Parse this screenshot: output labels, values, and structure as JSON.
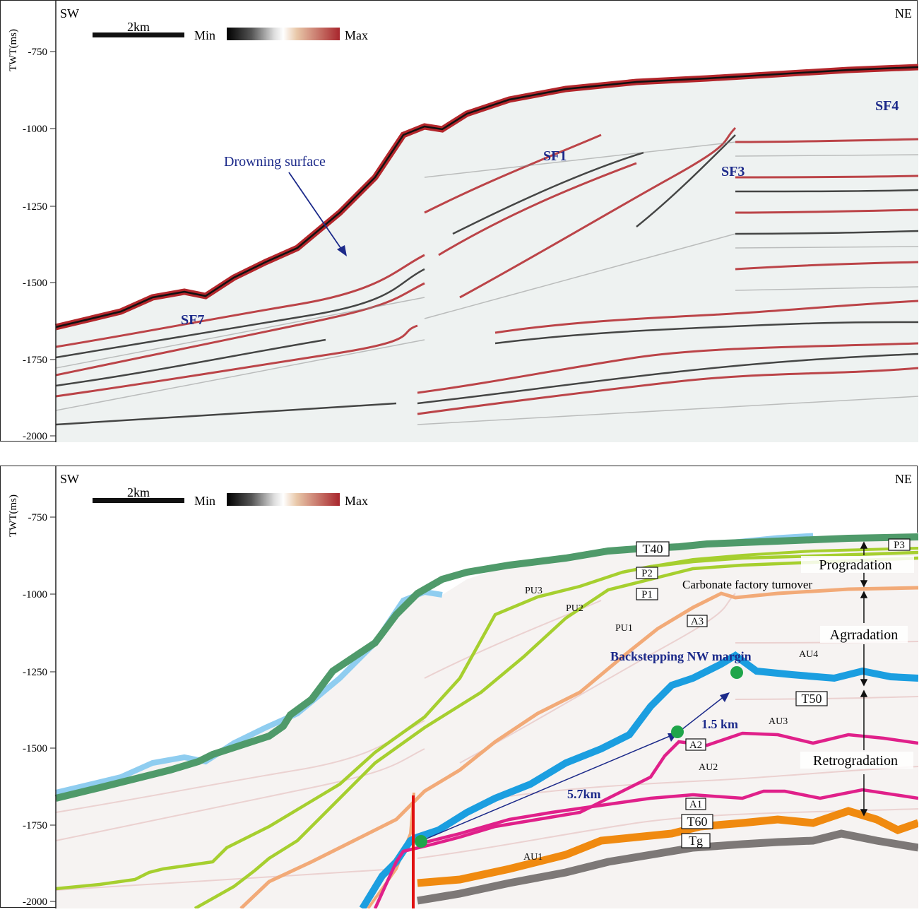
{
  "top_panel": {
    "axis_label": "TWT(ms)",
    "ticks": [
      "-750",
      "-1000",
      "-1250",
      "-1500",
      "-1750",
      "-2000"
    ],
    "direction_left": "SW",
    "direction_right": "NE",
    "scale_bar": "2km",
    "colorbar_min": "Min",
    "colorbar_max": "Max",
    "labels": {
      "sf1": "SF1",
      "sf3": "SF3",
      "sf4": "SF4",
      "sf7": "SF7",
      "drowning": "Drowning surface"
    }
  },
  "bottom_panel": {
    "axis_label": "TWT(ms)",
    "ticks": [
      "-750",
      "-1000",
      "-1250",
      "-1500",
      "-1750",
      "-2000"
    ],
    "direction_left": "SW",
    "direction_right": "NE",
    "scale_bar": "2km",
    "colorbar_min": "Min",
    "colorbar_max": "Max",
    "horizons": {
      "t40": "T40",
      "t50": "T50",
      "t60": "T60",
      "tg": "Tg",
      "p1": "P1",
      "p2": "P2",
      "p3": "P3",
      "a1": "A1",
      "a2": "A2",
      "a3": "A3"
    },
    "units": {
      "pu1": "PU1",
      "pu2": "PU2",
      "pu3": "PU3",
      "au1": "AU1",
      "au2": "AU2",
      "au3": "AU3",
      "au4": "AU4"
    },
    "annotations": {
      "carbonate": "Carbonate factory turnover",
      "backstepping": "Backstepping NW margin",
      "dist_15": "1.5 km",
      "dist_57": "5.7km"
    },
    "stacking": {
      "progradation": "Progradation",
      "aggradation": "Agrradation",
      "retrogradation": "Retrogradation"
    }
  },
  "colors": {
    "seismic_red": "#b3262b",
    "t40": "#4f9a6a",
    "seafloor": "#8fcdf0",
    "pu_green": "#a6cf2f",
    "a3_orange": "#f2aa78",
    "t50_blue": "#1b9ee0",
    "pink": "#e0208a",
    "t60_orange": "#f08a10",
    "tg_gray": "#7d7877",
    "fault_red": "#e01010",
    "navy": "#1c2a8a",
    "green_dot": "#1fa54a"
  }
}
